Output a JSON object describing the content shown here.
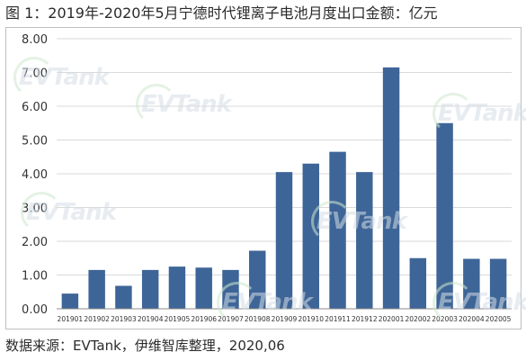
{
  "title": "图 1：2019年-2020年5月宁德时代锂离子电池月度出口金额：亿元",
  "source": "数据来源：EVTank，伊维智库整理，2020,06",
  "watermark": {
    "logo_text": "EVTank",
    "cn_text": "伊维经济研究院"
  },
  "colors": {
    "bar": "#3e6597",
    "grid": "#d9d9d9",
    "axis": "#8c8c8c",
    "text": "#333333"
  },
  "chart_data": {
    "type": "bar",
    "categories": [
      "201901",
      "201902",
      "201903",
      "201904",
      "201905",
      "201906",
      "201907",
      "201908",
      "201909",
      "201910",
      "201911",
      "201912",
      "202001",
      "202002",
      "202003",
      "202004",
      "202005"
    ],
    "values": [
      0.45,
      1.15,
      0.68,
      1.15,
      1.25,
      1.22,
      1.15,
      1.72,
      4.05,
      4.3,
      4.65,
      4.05,
      7.15,
      1.5,
      5.5,
      1.48,
      1.48
    ],
    "yticks": [
      "0.00",
      "1.00",
      "2.00",
      "3.00",
      "4.00",
      "5.00",
      "6.00",
      "7.00",
      "8.00"
    ],
    "ylim": [
      0,
      8
    ],
    "grid": true,
    "title": "",
    "xlabel": "",
    "ylabel": ""
  }
}
